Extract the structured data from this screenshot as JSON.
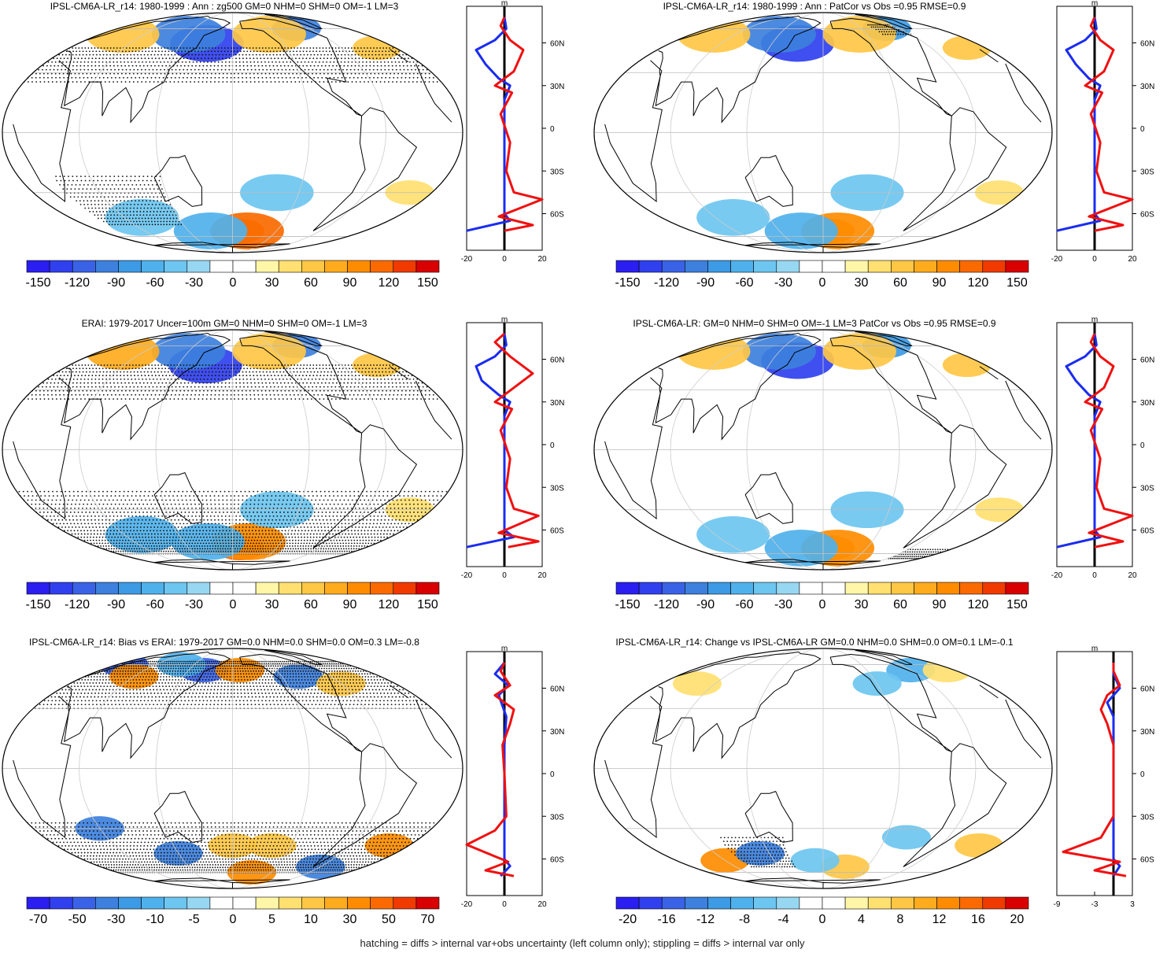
{
  "footer": "hatching = diffs > internal var+obs uncertainty (left column only); stippling = diffs > internal var only",
  "profile_unit": "m",
  "lat_ticks": [
    "60N",
    "30N",
    "0",
    "30S",
    "60S"
  ],
  "palette": [
    "#2a1ef0",
    "#3040ee",
    "#3a62e6",
    "#3d80dd",
    "#3d9ae4",
    "#4fb1ec",
    "#6dc6f0",
    "#98d7f1",
    "#ffffff",
    "#ffffff",
    "#fff6a8",
    "#ffe070",
    "#ffc745",
    "#ffab1e",
    "#ff8c00",
    "#fa6a00",
    "#f03a00",
    "#d80000"
  ],
  "chart_data": [
    {
      "type": "heatmap",
      "title": "IPSL-CM6A-LR_r14: 1980-1999 : Ann : zg500 GM=0 NHM=0 SHM=0 OM=-1 LM=3",
      "colorbar_labels": [
        "-150",
        "-120",
        "-90",
        "-60",
        "-30",
        "0",
        "30",
        "60",
        "90",
        "120",
        "150"
      ],
      "profile_xticks": [
        "-20",
        "0",
        "20"
      ],
      "profile_xlim": [
        -20,
        20
      ],
      "blobs": [
        {
          "x": 150,
          "y": 48,
          "r": 3,
          "v": -130
        },
        {
          "x": 120,
          "y": 55,
          "r": 3,
          "v": -100
        },
        {
          "x": 30,
          "y": 55,
          "r": 3,
          "v": 60
        },
        {
          "x": -20,
          "y": 45,
          "r": 2,
          "v": 50
        },
        {
          "x": -80,
          "y": 60,
          "r": 2,
          "v": -90
        },
        {
          "x": -130,
          "y": 55,
          "r": 3,
          "v": 50
        },
        {
          "x": -170,
          "y": -55,
          "r": 2,
          "v": 100
        },
        {
          "x": -160,
          "y": -55,
          "r": 3,
          "v": 110
        },
        {
          "x": 150,
          "y": -55,
          "r": 3,
          "v": -60
        },
        {
          "x": 80,
          "y": -45,
          "r": 3,
          "v": -50
        },
        {
          "x": -20,
          "y": -30,
          "r": 2,
          "v": 40
        },
        {
          "x": -140,
          "y": -30,
          "r": 3,
          "v": -40
        }
      ],
      "stipple": [
        {
          "lat0": 25,
          "lat1": 45,
          "lon0": -180,
          "lon1": 180
        },
        {
          "lat0": -50,
          "lat1": -20,
          "lon0": 30,
          "lon1": 120
        }
      ],
      "blue": [
        [
          -72,
          -20
        ],
        [
          -65,
          3
        ],
        [
          -60,
          0
        ],
        [
          -50,
          0
        ],
        [
          -30,
          0
        ],
        [
          0,
          0
        ],
        [
          20,
          0
        ],
        [
          30,
          3
        ],
        [
          35,
          -3
        ],
        [
          45,
          -10
        ],
        [
          55,
          -15
        ],
        [
          62,
          -5
        ],
        [
          70,
          1
        ],
        [
          78,
          0
        ]
      ],
      "red": [
        [
          -72,
          0
        ],
        [
          -68,
          15
        ],
        [
          -62,
          -3
        ],
        [
          -50,
          20
        ],
        [
          -45,
          5
        ],
        [
          -30,
          1
        ],
        [
          -10,
          3
        ],
        [
          10,
          -2
        ],
        [
          25,
          4
        ],
        [
          30,
          -5
        ],
        [
          40,
          5
        ],
        [
          55,
          10
        ],
        [
          62,
          3
        ],
        [
          72,
          -2
        ],
        [
          78,
          0
        ]
      ]
    },
    {
      "type": "heatmap",
      "title": "IPSL-CM6A-LR_r14: 1980-1999 : Ann : PatCor vs Obs =0.95 RMSE=0.9",
      "colorbar_labels": [
        "-150",
        "-120",
        "-90",
        "-60",
        "-30",
        "0",
        "30",
        "60",
        "90",
        "120",
        "150"
      ],
      "profile_xticks": [
        "-20",
        "0",
        "20"
      ],
      "profile_xlim": [
        -20,
        20
      ],
      "blobs": [
        {
          "x": 150,
          "y": 48,
          "r": 3,
          "v": -130
        },
        {
          "x": 120,
          "y": 55,
          "r": 3,
          "v": -90
        },
        {
          "x": 30,
          "y": 55,
          "r": 3,
          "v": 60
        },
        {
          "x": -20,
          "y": 45,
          "r": 2,
          "v": 50
        },
        {
          "x": -80,
          "y": 60,
          "r": 2,
          "v": -80
        },
        {
          "x": -130,
          "y": 55,
          "r": 3,
          "v": 50
        },
        {
          "x": -170,
          "y": -55,
          "r": 2,
          "v": 100
        },
        {
          "x": -160,
          "y": -55,
          "r": 3,
          "v": 100
        },
        {
          "x": 150,
          "y": -55,
          "r": 3,
          "v": -60
        },
        {
          "x": 80,
          "y": -45,
          "r": 3,
          "v": -50
        },
        {
          "x": -20,
          "y": -30,
          "r": 2,
          "v": 40
        },
        {
          "x": -140,
          "y": -30,
          "r": 3,
          "v": -40
        }
      ],
      "stipple": [
        {
          "lat0": 55,
          "lat1": 65,
          "lon0": -100,
          "lon1": -60
        }
      ],
      "blue": [
        [
          -72,
          -20
        ],
        [
          -65,
          3
        ],
        [
          -60,
          0
        ],
        [
          -50,
          0
        ],
        [
          -30,
          0
        ],
        [
          0,
          0
        ],
        [
          20,
          0
        ],
        [
          30,
          3
        ],
        [
          35,
          -3
        ],
        [
          45,
          -10
        ],
        [
          55,
          -15
        ],
        [
          62,
          -5
        ],
        [
          70,
          1
        ],
        [
          78,
          0
        ]
      ],
      "red": [
        [
          -72,
          0
        ],
        [
          -68,
          15
        ],
        [
          -62,
          -3
        ],
        [
          -50,
          20
        ],
        [
          -45,
          5
        ],
        [
          -30,
          1
        ],
        [
          -10,
          3
        ],
        [
          10,
          -2
        ],
        [
          25,
          4
        ],
        [
          30,
          -5
        ],
        [
          40,
          5
        ],
        [
          55,
          10
        ],
        [
          62,
          3
        ],
        [
          72,
          -2
        ],
        [
          78,
          0
        ]
      ]
    },
    {
      "type": "heatmap",
      "title": "ERAI: 1979-2017 Uncer=100m GM=0 NHM=0 SHM=0 OM=-1 LM=3",
      "colorbar_labels": [
        "-150",
        "-120",
        "-90",
        "-60",
        "-30",
        "0",
        "30",
        "60",
        "90",
        "120",
        "150"
      ],
      "profile_xticks": [
        "-20",
        "0",
        "20"
      ],
      "profile_xlim": [
        -20,
        20
      ],
      "blobs": [
        {
          "x": 150,
          "y": 45,
          "r": 3,
          "v": -120
        },
        {
          "x": 120,
          "y": 55,
          "r": 3,
          "v": -90
        },
        {
          "x": 30,
          "y": 55,
          "r": 3,
          "v": 70
        },
        {
          "x": -20,
          "y": 45,
          "r": 2,
          "v": 60
        },
        {
          "x": -80,
          "y": 60,
          "r": 2,
          "v": -90
        },
        {
          "x": -130,
          "y": 55,
          "r": 3,
          "v": 50
        },
        {
          "x": -170,
          "y": -55,
          "r": 2,
          "v": 110
        },
        {
          "x": -160,
          "y": -50,
          "r": 3,
          "v": 100
        },
        {
          "x": 150,
          "y": -50,
          "r": 3,
          "v": -60
        },
        {
          "x": 80,
          "y": -45,
          "r": 3,
          "v": -60
        },
        {
          "x": -20,
          "y": -30,
          "r": 2,
          "v": 40
        },
        {
          "x": -140,
          "y": -30,
          "r": 3,
          "v": -40
        }
      ],
      "stipple": [
        {
          "lat0": 25,
          "lat1": 45,
          "lon0": -180,
          "lon1": 180
        },
        {
          "lat0": -60,
          "lat1": -20,
          "lon0": -180,
          "lon1": 180
        }
      ],
      "blue": [
        [
          -72,
          -20
        ],
        [
          -65,
          5
        ],
        [
          -60,
          0
        ],
        [
          -50,
          0
        ],
        [
          -30,
          0
        ],
        [
          0,
          0
        ],
        [
          20,
          0
        ],
        [
          30,
          3
        ],
        [
          35,
          -3
        ],
        [
          45,
          -12
        ],
        [
          55,
          -15
        ],
        [
          62,
          -5
        ],
        [
          70,
          1
        ],
        [
          78,
          0
        ]
      ],
      "red": [
        [
          -72,
          2
        ],
        [
          -68,
          18
        ],
        [
          -62,
          -3
        ],
        [
          -50,
          18
        ],
        [
          -45,
          5
        ],
        [
          -30,
          1
        ],
        [
          -10,
          3
        ],
        [
          10,
          -2
        ],
        [
          25,
          4
        ],
        [
          30,
          -5
        ],
        [
          40,
          5
        ],
        [
          50,
          15
        ],
        [
          62,
          3
        ],
        [
          72,
          -5
        ],
        [
          78,
          0
        ]
      ]
    },
    {
      "type": "heatmap",
      "title": "IPSL-CM6A-LR: GM=0 NHM=0 SHM=0 OM=-1 LM=3 PatCor vs Obs =0.95 RMSE=0.9",
      "colorbar_labels": [
        "-150",
        "-120",
        "-90",
        "-60",
        "-30",
        "0",
        "30",
        "60",
        "90",
        "120",
        "150"
      ],
      "profile_xticks": [
        "-20",
        "0",
        "20"
      ],
      "profile_xlim": [
        -20,
        20
      ],
      "blobs": [
        {
          "x": 150,
          "y": 48,
          "r": 3,
          "v": -130
        },
        {
          "x": 120,
          "y": 55,
          "r": 3,
          "v": -90
        },
        {
          "x": 30,
          "y": 55,
          "r": 3,
          "v": 60
        },
        {
          "x": -20,
          "y": 45,
          "r": 2,
          "v": 50
        },
        {
          "x": -80,
          "y": 60,
          "r": 2,
          "v": -80
        },
        {
          "x": -130,
          "y": 55,
          "r": 3,
          "v": 50
        },
        {
          "x": -170,
          "y": -55,
          "r": 2,
          "v": 100
        },
        {
          "x": -160,
          "y": -55,
          "r": 3,
          "v": 100
        },
        {
          "x": 150,
          "y": -55,
          "r": 3,
          "v": -60
        },
        {
          "x": 80,
          "y": -45,
          "r": 3,
          "v": -50
        },
        {
          "x": -20,
          "y": -30,
          "r": 2,
          "v": 40
        },
        {
          "x": -140,
          "y": -30,
          "r": 3,
          "v": -40
        }
      ],
      "stipple": [
        {
          "lat0": -65,
          "lat1": -55,
          "lon0": -60,
          "lon1": 0
        }
      ],
      "blue": [
        [
          -72,
          -20
        ],
        [
          -65,
          3
        ],
        [
          -60,
          0
        ],
        [
          -50,
          0
        ],
        [
          -30,
          0
        ],
        [
          0,
          0
        ],
        [
          20,
          0
        ],
        [
          30,
          3
        ],
        [
          35,
          -3
        ],
        [
          45,
          -10
        ],
        [
          55,
          -15
        ],
        [
          62,
          -5
        ],
        [
          70,
          1
        ],
        [
          78,
          0
        ]
      ],
      "red": [
        [
          -72,
          0
        ],
        [
          -68,
          15
        ],
        [
          -62,
          -3
        ],
        [
          -50,
          20
        ],
        [
          -45,
          5
        ],
        [
          -30,
          1
        ],
        [
          -10,
          3
        ],
        [
          10,
          -2
        ],
        [
          25,
          4
        ],
        [
          30,
          -5
        ],
        [
          40,
          5
        ],
        [
          55,
          10
        ],
        [
          62,
          3
        ],
        [
          72,
          -2
        ],
        [
          78,
          0
        ]
      ]
    },
    {
      "type": "heatmap",
      "title": "IPSL-CM6A-LR_r14: Bias vs ERAI: 1979-2017 GM=0.0 NHM=0.0 SHM=0.0 OM=0.3 LM=-0.8",
      "colorbar_labels": [
        "-70",
        "-50",
        "-30",
        "-10",
        "-5",
        "0",
        "5",
        "10",
        "30",
        "50",
        "70"
      ],
      "profile_xticks": [
        "-20",
        "0",
        "20"
      ],
      "profile_xlim": [
        -20,
        20
      ],
      "blobs": [
        {
          "x": 140,
          "y": 55,
          "r": 2,
          "v": -50
        },
        {
          "x": -170,
          "y": 55,
          "r": 2,
          "v": 40
        },
        {
          "x": -100,
          "y": 50,
          "r": 2,
          "v": -40
        },
        {
          "x": 10,
          "y": 60,
          "r": 2,
          "v": -50
        },
        {
          "x": 60,
          "y": 50,
          "r": 2,
          "v": 40
        },
        {
          "x": 100,
          "y": 60,
          "r": 2,
          "v": -30
        },
        {
          "x": -60,
          "y": 45,
          "r": 2,
          "v": 30
        },
        {
          "x": -20,
          "y": -40,
          "r": 2,
          "v": 40
        },
        {
          "x": 60,
          "y": -30,
          "r": 2,
          "v": -40
        },
        {
          "x": 120,
          "y": -45,
          "r": 2,
          "v": -40
        },
        {
          "x": -140,
          "y": -40,
          "r": 2,
          "v": 30
        },
        {
          "x": -60,
          "y": -55,
          "r": 2,
          "v": -40
        },
        {
          "x": -150,
          "y": -60,
          "r": 2,
          "v": 40
        },
        {
          "x": 180,
          "y": -40,
          "r": 2,
          "v": 30
        }
      ],
      "stipple": [
        {
          "lat0": 30,
          "lat1": 65,
          "lon0": -180,
          "lon1": 180
        },
        {
          "lat0": -60,
          "lat1": -25,
          "lon0": -180,
          "lon1": 180
        }
      ],
      "blue": [
        [
          -72,
          -2
        ],
        [
          -65,
          3
        ],
        [
          -60,
          0
        ],
        [
          -30,
          0
        ],
        [
          0,
          0
        ],
        [
          20,
          0
        ],
        [
          40,
          1
        ],
        [
          55,
          -3
        ],
        [
          62,
          2
        ],
        [
          70,
          -5
        ],
        [
          78,
          0
        ]
      ],
      "red": [
        [
          -72,
          5
        ],
        [
          -68,
          -10
        ],
        [
          -62,
          2
        ],
        [
          -50,
          -20
        ],
        [
          -40,
          -5
        ],
        [
          -30,
          1
        ],
        [
          0,
          0
        ],
        [
          20,
          -1
        ],
        [
          35,
          3
        ],
        [
          45,
          5
        ],
        [
          55,
          -5
        ],
        [
          62,
          3
        ],
        [
          72,
          -2
        ],
        [
          78,
          0
        ]
      ]
    },
    {
      "type": "heatmap",
      "title": "IPSL-CM6A-LR_r14: Change vs IPSL-CM6A-LR GM=0.0 NHM=0.0 SHM=0.0 OM=0.1 LM=-0.1",
      "colorbar_labels": [
        "-20",
        "-16",
        "-12",
        "-8",
        "-4",
        "0",
        "4",
        "8",
        "12",
        "16",
        "20"
      ],
      "profile_xticks": [
        "-9",
        "-3",
        "3"
      ],
      "profile_xlim": [
        -9,
        3
      ],
      "blobs": [
        {
          "x": 60,
          "y": -50,
          "r": 2,
          "v": 12
        },
        {
          "x": 110,
          "y": -45,
          "r": 2,
          "v": -12
        },
        {
          "x": -150,
          "y": -55,
          "r": 2,
          "v": 8
        },
        {
          "x": 170,
          "y": -50,
          "r": 2,
          "v": -6
        },
        {
          "x": -60,
          "y": 55,
          "r": 2,
          "v": -8
        },
        {
          "x": -10,
          "y": 55,
          "r": 2,
          "v": 6
        },
        {
          "x": -120,
          "y": 45,
          "r": 2,
          "v": -6
        },
        {
          "x": 40,
          "y": 45,
          "r": 2,
          "v": 6
        },
        {
          "x": -20,
          "y": -40,
          "r": 2,
          "v": 8
        },
        {
          "x": -100,
          "y": -35,
          "r": 2,
          "v": -6
        }
      ],
      "stipple": [
        {
          "lat0": -55,
          "lat1": -35,
          "lon0": 80,
          "lon1": 140
        }
      ],
      "blue": [
        [
          -72,
          0
        ],
        [
          -65,
          1
        ],
        [
          -60,
          0
        ],
        [
          -30,
          0
        ],
        [
          0,
          0
        ],
        [
          20,
          0
        ],
        [
          40,
          0
        ],
        [
          50,
          -1
        ],
        [
          60,
          1
        ],
        [
          70,
          0
        ],
        [
          78,
          0
        ]
      ],
      "red": [
        [
          -72,
          2
        ],
        [
          -68,
          -3
        ],
        [
          -62,
          1
        ],
        [
          -55,
          -8
        ],
        [
          -45,
          -2
        ],
        [
          -30,
          0
        ],
        [
          0,
          0
        ],
        [
          20,
          0
        ],
        [
          35,
          -1
        ],
        [
          45,
          -2
        ],
        [
          55,
          -1
        ],
        [
          62,
          1
        ],
        [
          72,
          0
        ],
        [
          78,
          0
        ]
      ]
    }
  ]
}
